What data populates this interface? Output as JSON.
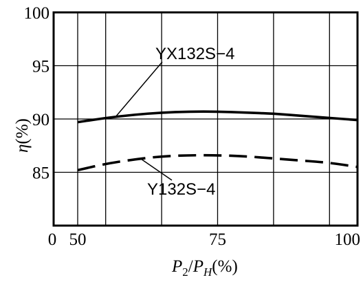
{
  "chart_data": {
    "type": "line",
    "xlabel": "P2/PH (%)",
    "ylabel": "η(%)",
    "x_ticks": [
      0,
      50,
      75,
      100
    ],
    "x_tick_labels": [
      "0",
      "50",
      "75",
      "100"
    ],
    "y_ticks": [
      85,
      90,
      95,
      100
    ],
    "y_tick_labels": [
      "85",
      "90",
      "95",
      "100"
    ],
    "xlim": [
      0,
      100
    ],
    "ylim": [
      80,
      100
    ],
    "grid": true,
    "series": [
      {
        "name": "YX132S−4",
        "style": "solid",
        "color": "#000000",
        "x": [
          50,
          55,
          60,
          65,
          70,
          75,
          80,
          85,
          90,
          95,
          100
        ],
        "y": [
          89.7,
          90.1,
          90.4,
          90.6,
          90.7,
          90.7,
          90.6,
          90.5,
          90.3,
          90.1,
          89.9
        ]
      },
      {
        "name": "Y132S−4",
        "style": "dashed",
        "color": "#000000",
        "x": [
          50,
          55,
          60,
          65,
          70,
          75,
          80,
          85,
          90,
          95,
          100
        ],
        "y": [
          85.2,
          85.8,
          86.2,
          86.5,
          86.6,
          86.6,
          86.5,
          86.3,
          86.1,
          85.9,
          85.5
        ]
      }
    ]
  }
}
